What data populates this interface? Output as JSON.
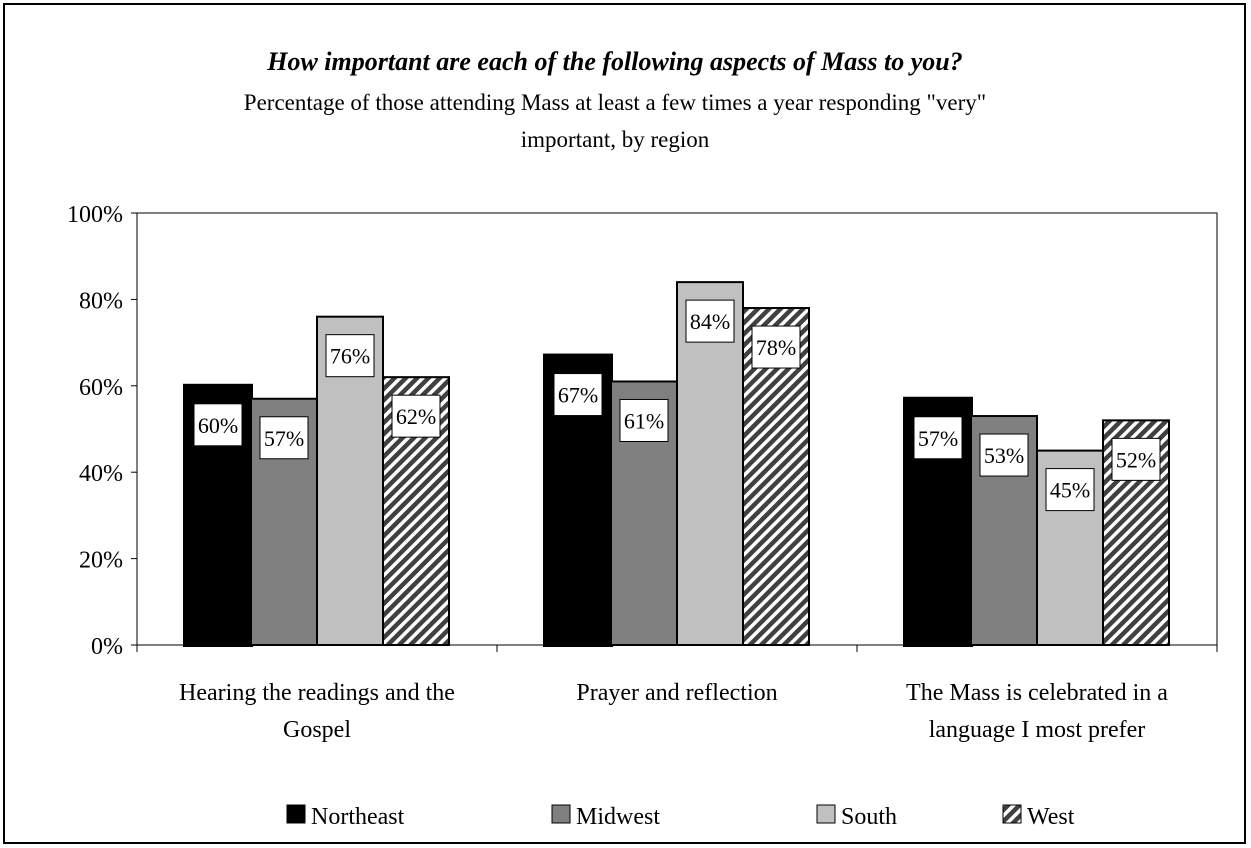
{
  "chart_data": {
    "type": "bar",
    "title": "How important are each of the following aspects of Mass to you?",
    "subtitle_lines": [
      "Percentage of those attending Mass at least a few times a year responding \"very\"",
      "important, by region"
    ],
    "categories": [
      {
        "lines": [
          "Hearing the readings and the",
          "Gospel"
        ]
      },
      {
        "lines": [
          "Prayer and reflection"
        ]
      },
      {
        "lines": [
          "The Mass is celebrated in a",
          "language I most prefer"
        ]
      }
    ],
    "series": [
      {
        "name": "Northeast",
        "values": [
          60,
          67,
          57
        ],
        "labels": [
          "60%",
          "67%",
          "57%"
        ],
        "fill": "#000000",
        "pattern": "solid"
      },
      {
        "name": "Midwest",
        "values": [
          57,
          61,
          53
        ],
        "labels": [
          "57%",
          "61%",
          "53%"
        ],
        "fill": "#808080",
        "pattern": "solid"
      },
      {
        "name": "South",
        "values": [
          76,
          84,
          45
        ],
        "labels": [
          "76%",
          "84%",
          "45%"
        ],
        "fill": "#c0c0c0",
        "pattern": "solid"
      },
      {
        "name": "West",
        "values": [
          62,
          78,
          52
        ],
        "labels": [
          "62%",
          "78%",
          "52%"
        ],
        "fill": "#808080",
        "pattern": "diagonal-hatch"
      }
    ],
    "y_ticks": [
      "0%",
      "20%",
      "40%",
      "60%",
      "80%",
      "100%"
    ],
    "ylim": [
      0,
      100
    ],
    "grid": false,
    "legend_position": "bottom"
  }
}
